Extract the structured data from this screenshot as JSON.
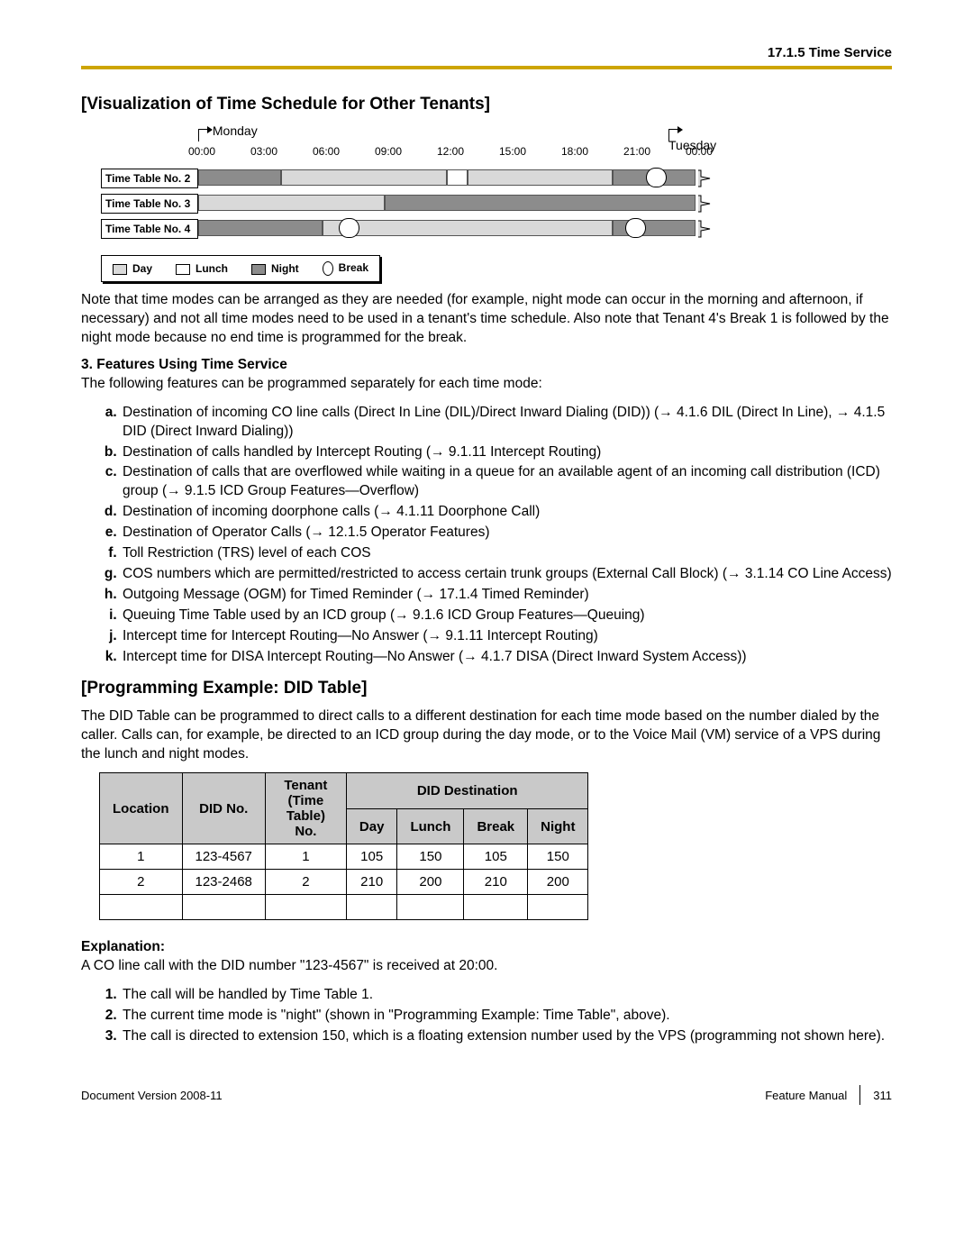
{
  "header": {
    "section_ref": "17.1.5 Time Service"
  },
  "viz": {
    "title": "[Visualization of Time Schedule for Other Tenants]",
    "day_left": "Monday",
    "day_right": "Tuesday",
    "axis_start": 0,
    "axis_end": 24,
    "ticks": [
      {
        "pos": 0,
        "label": "00:00"
      },
      {
        "pos": 3,
        "label": "03:00"
      },
      {
        "pos": 6,
        "label": "06:00"
      },
      {
        "pos": 9,
        "label": "09:00"
      },
      {
        "pos": 12,
        "label": "12:00"
      },
      {
        "pos": 15,
        "label": "15:00"
      },
      {
        "pos": 18,
        "label": "18:00"
      },
      {
        "pos": 21,
        "label": "21:00"
      },
      {
        "pos": 24,
        "label": "00:00"
      }
    ],
    "colors": {
      "day": "#d9d9d9",
      "lunch": "#ffffff",
      "night": "#8c8c8c",
      "break_border": "#000000",
      "arrow": "#000000"
    },
    "rows": [
      {
        "label": "Time Table No. 2",
        "segments": [
          {
            "type": "night",
            "start": 0,
            "end": 4
          },
          {
            "type": "day",
            "start": 4,
            "end": 12
          },
          {
            "type": "lunch",
            "start": 12,
            "end": 13
          },
          {
            "type": "day",
            "start": 13,
            "end": 20
          },
          {
            "type": "night",
            "start": 20,
            "end": 24
          }
        ],
        "breaks": [
          {
            "start": 21.6,
            "end": 22.6
          }
        ]
      },
      {
        "label": "Time Table No. 3",
        "segments": [
          {
            "type": "day",
            "start": 0,
            "end": 9
          },
          {
            "type": "night",
            "start": 9,
            "end": 24
          }
        ],
        "breaks": []
      },
      {
        "label": "Time Table No. 4",
        "segments": [
          {
            "type": "night",
            "start": 0,
            "end": 6
          },
          {
            "type": "day",
            "start": 6,
            "end": 20
          },
          {
            "type": "night",
            "start": 20,
            "end": 24
          }
        ],
        "breaks": [
          {
            "start": 6.8,
            "end": 7.8
          },
          {
            "start": 20.6,
            "end": 21.6
          }
        ]
      }
    ],
    "legend": [
      {
        "kind": "swatch",
        "fill": "day",
        "label": "Day"
      },
      {
        "kind": "swatch",
        "fill": "lunch",
        "label": "Lunch"
      },
      {
        "kind": "swatch",
        "fill": "night",
        "label": "Night"
      },
      {
        "kind": "oval",
        "label": "Break"
      }
    ]
  },
  "note_para": "Note that time modes can be arranged as they are needed (for example, night mode can occur in the morning and afternoon, if necessary) and not all time modes need to be used in a tenant's time schedule. Also note that Tenant 4's Break 1 is followed by the night mode because no end time is programmed for the break.",
  "features": {
    "number": "3.",
    "heading": "Features Using Time Service",
    "intro": "The following features can be programmed separately for each time mode:",
    "items": [
      "Destination of incoming CO line calls (Direct In Line (DIL)/Direct Inward Dialing (DID)) (→ 4.1.6  DIL (Direct In Line), → 4.1.5  DID (Direct Inward Dialing))",
      "Destination of calls handled by Intercept Routing (→ 9.1.11  Intercept Routing)",
      "Destination of calls that are overflowed while waiting in a queue for an available agent of an incoming call distribution (ICD) group (→ 9.1.5  ICD Group Features—Overflow)",
      "Destination of incoming doorphone calls (→ 4.1.11  Doorphone Call)",
      "Destination of Operator Calls (→ 12.1.5  Operator Features)",
      "Toll Restriction (TRS) level of each COS",
      "COS numbers which are permitted/restricted to access certain trunk groups (External Call Block) (→ 3.1.14  CO Line Access)",
      "Outgoing Message (OGM) for Timed Reminder (→ 17.1.4  Timed Reminder)",
      "Queuing Time Table used by an ICD group (→ 9.1.6  ICD Group Features—Queuing)",
      "Intercept time for Intercept Routing—No Answer (→ 9.1.11  Intercept Routing)",
      "Intercept time for DISA Intercept Routing—No Answer (→ 4.1.7  DISA (Direct Inward System Access))"
    ]
  },
  "did": {
    "title": "[Programming Example: DID Table]",
    "intro": "The DID Table can be programmed to direct calls to a different destination for each time mode based on the number dialed by the caller. Calls can, for example, be directed to an ICD group during the day mode, or to the Voice Mail (VM) service of a VPS during the lunch and night modes.",
    "columns": {
      "location": "Location",
      "didno": "DID No.",
      "tenant": "Tenant (Time Table) No.",
      "dest_group": "DID Destination",
      "day": "Day",
      "lunch": "Lunch",
      "break": "Break",
      "night": "Night"
    },
    "rows": [
      {
        "location": "1",
        "didno": "123-4567",
        "tenant": "1",
        "day": "105",
        "lunch": "150",
        "break": "105",
        "night": "150"
      },
      {
        "location": "2",
        "didno": "123-2468",
        "tenant": "2",
        "day": "210",
        "lunch": "200",
        "break": "210",
        "night": "200"
      }
    ]
  },
  "explanation": {
    "heading": "Explanation:",
    "lead": "A CO line call with the DID number \"123-4567\" is received at 20:00.",
    "items": [
      "The call will be handled by Time Table 1.",
      "The current time mode is \"night\" (shown in \"Programming Example: Time Table\", above).",
      "The call is directed to extension 150, which is a floating extension number used by the VPS (programming not shown here)."
    ]
  },
  "footer": {
    "left": "Document Version  2008-11",
    "right_label": "Feature Manual",
    "page": "311"
  }
}
